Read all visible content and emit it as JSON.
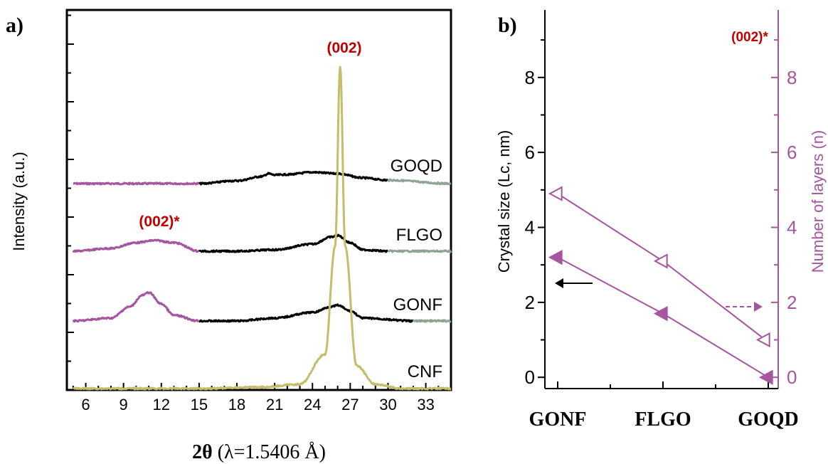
{
  "panel_a": {
    "label": "a)",
    "ylabel": "Intensity (a.u.)",
    "xlabel_main": "2θ",
    "xlabel_rest": " (λ=1.5406 Å)",
    "x_ticks": [
      "6",
      "9",
      "12",
      "15",
      "18",
      "21",
      "24",
      "27",
      "30",
      "33"
    ],
    "annotation_002": "(002)",
    "annotation_002_star": "(002)*",
    "curve_labels": {
      "goqd": "GOQD",
      "flgo": "FLGO",
      "gonf": "GONF",
      "cnf": "CNF"
    }
  },
  "panel_b": {
    "label": "b)",
    "ylabel_left": "Crystal size (Lc, nm)",
    "ylabel_right": "Number of layers (n)",
    "annotation": "(002)*",
    "y_ticks": [
      "0",
      "2",
      "4",
      "6",
      "8"
    ],
    "categories": [
      "GONF",
      "FLGO",
      "GOQD"
    ]
  },
  "colors": {
    "purple": "#a5569e",
    "black": "#000000",
    "olive": "#c4bd6a",
    "gray_green": "#8fa394",
    "red": "#c00000"
  },
  "chart_data": [
    {
      "type": "line",
      "title": "",
      "xlabel": "2θ (λ=1.5406 Å)",
      "ylabel": "Intensity (a.u.)",
      "xlim": [
        4.5,
        35
      ],
      "series": [
        {
          "name": "GOQD",
          "x": [
            5,
            10,
            15,
            18,
            20,
            20.5,
            21,
            22,
            24,
            26,
            28,
            30,
            35
          ],
          "y": [
            0,
            0,
            0,
            0.1,
            0.25,
            0.35,
            0.3,
            0.32,
            0.4,
            0.35,
            0.2,
            0.12,
            0
          ]
        },
        {
          "name": "FLGO",
          "x": [
            5,
            8,
            10,
            11.5,
            13,
            15,
            18,
            21,
            24,
            25.5,
            26,
            27,
            28,
            30,
            35
          ],
          "y": [
            0,
            0.1,
            0.3,
            0.38,
            0.3,
            0,
            0,
            0.05,
            0.25,
            0.5,
            0.55,
            0.3,
            0.05,
            0,
            0
          ]
        },
        {
          "name": "GONF",
          "x": [
            5,
            8,
            9.5,
            10.5,
            11,
            12,
            13,
            15,
            18,
            21,
            24,
            25.5,
            26,
            27,
            28,
            32,
            35
          ],
          "y": [
            0,
            0.1,
            0.5,
            0.9,
            1.0,
            0.6,
            0.2,
            0,
            0,
            0.1,
            0.3,
            0.5,
            0.55,
            0.35,
            0.1,
            0,
            0
          ]
        },
        {
          "name": "CNF",
          "x": [
            5,
            10,
            15,
            20,
            23,
            25,
            25.8,
            26.2,
            26.6,
            27.5,
            29,
            31,
            35
          ],
          "y": [
            0,
            0,
            0,
            0.05,
            0.15,
            1.2,
            5,
            11.3,
            5,
            0.8,
            0.15,
            0,
            0
          ]
        }
      ]
    },
    {
      "type": "line",
      "title": "",
      "categories": [
        "GONF",
        "FLGO",
        "GOQD"
      ],
      "ylabel": "Crystal size (Lc, nm)",
      "ylabel_right": "Number of layers (n)",
      "ylim": [
        -0.3,
        9.8
      ],
      "series": [
        {
          "axis": "left",
          "marker": "filled-triangle",
          "values": [
            3.2,
            1.7,
            0.0
          ]
        },
        {
          "axis": "right",
          "marker": "open-triangle",
          "values": [
            4.9,
            3.1,
            1.0
          ]
        }
      ]
    }
  ]
}
